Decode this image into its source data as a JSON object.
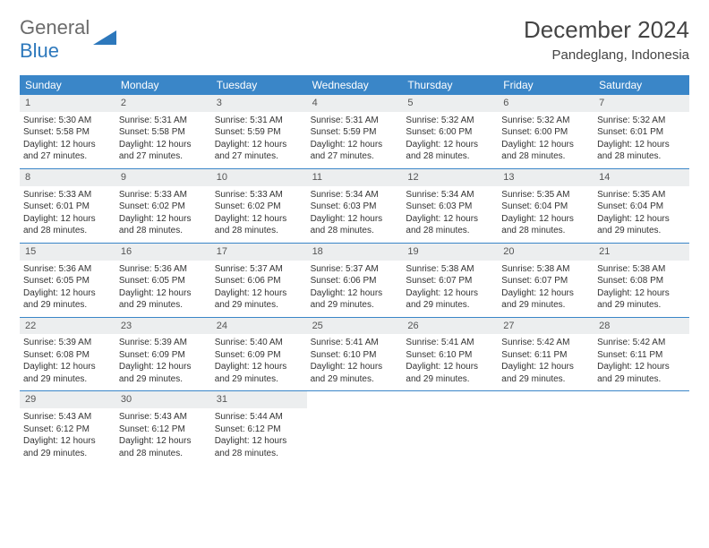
{
  "logo": {
    "part1": "General",
    "part2": "Blue"
  },
  "title": "December 2024",
  "location": "Pandeglang, Indonesia",
  "colors": {
    "header_bg": "#3a86c8",
    "header_text": "#ffffff",
    "daynum_bg": "#eceeef",
    "border": "#3a86c8",
    "logo_gray": "#6b6b6b",
    "logo_blue": "#2d78bc"
  },
  "day_names": [
    "Sunday",
    "Monday",
    "Tuesday",
    "Wednesday",
    "Thursday",
    "Friday",
    "Saturday"
  ],
  "weeks": [
    [
      {
        "n": "1",
        "sunrise": "Sunrise: 5:30 AM",
        "sunset": "Sunset: 5:58 PM",
        "daylight": "Daylight: 12 hours and 27 minutes."
      },
      {
        "n": "2",
        "sunrise": "Sunrise: 5:31 AM",
        "sunset": "Sunset: 5:58 PM",
        "daylight": "Daylight: 12 hours and 27 minutes."
      },
      {
        "n": "3",
        "sunrise": "Sunrise: 5:31 AM",
        "sunset": "Sunset: 5:59 PM",
        "daylight": "Daylight: 12 hours and 27 minutes."
      },
      {
        "n": "4",
        "sunrise": "Sunrise: 5:31 AM",
        "sunset": "Sunset: 5:59 PM",
        "daylight": "Daylight: 12 hours and 27 minutes."
      },
      {
        "n": "5",
        "sunrise": "Sunrise: 5:32 AM",
        "sunset": "Sunset: 6:00 PM",
        "daylight": "Daylight: 12 hours and 28 minutes."
      },
      {
        "n": "6",
        "sunrise": "Sunrise: 5:32 AM",
        "sunset": "Sunset: 6:00 PM",
        "daylight": "Daylight: 12 hours and 28 minutes."
      },
      {
        "n": "7",
        "sunrise": "Sunrise: 5:32 AM",
        "sunset": "Sunset: 6:01 PM",
        "daylight": "Daylight: 12 hours and 28 minutes."
      }
    ],
    [
      {
        "n": "8",
        "sunrise": "Sunrise: 5:33 AM",
        "sunset": "Sunset: 6:01 PM",
        "daylight": "Daylight: 12 hours and 28 minutes."
      },
      {
        "n": "9",
        "sunrise": "Sunrise: 5:33 AM",
        "sunset": "Sunset: 6:02 PM",
        "daylight": "Daylight: 12 hours and 28 minutes."
      },
      {
        "n": "10",
        "sunrise": "Sunrise: 5:33 AM",
        "sunset": "Sunset: 6:02 PM",
        "daylight": "Daylight: 12 hours and 28 minutes."
      },
      {
        "n": "11",
        "sunrise": "Sunrise: 5:34 AM",
        "sunset": "Sunset: 6:03 PM",
        "daylight": "Daylight: 12 hours and 28 minutes."
      },
      {
        "n": "12",
        "sunrise": "Sunrise: 5:34 AM",
        "sunset": "Sunset: 6:03 PM",
        "daylight": "Daylight: 12 hours and 28 minutes."
      },
      {
        "n": "13",
        "sunrise": "Sunrise: 5:35 AM",
        "sunset": "Sunset: 6:04 PM",
        "daylight": "Daylight: 12 hours and 28 minutes."
      },
      {
        "n": "14",
        "sunrise": "Sunrise: 5:35 AM",
        "sunset": "Sunset: 6:04 PM",
        "daylight": "Daylight: 12 hours and 29 minutes."
      }
    ],
    [
      {
        "n": "15",
        "sunrise": "Sunrise: 5:36 AM",
        "sunset": "Sunset: 6:05 PM",
        "daylight": "Daylight: 12 hours and 29 minutes."
      },
      {
        "n": "16",
        "sunrise": "Sunrise: 5:36 AM",
        "sunset": "Sunset: 6:05 PM",
        "daylight": "Daylight: 12 hours and 29 minutes."
      },
      {
        "n": "17",
        "sunrise": "Sunrise: 5:37 AM",
        "sunset": "Sunset: 6:06 PM",
        "daylight": "Daylight: 12 hours and 29 minutes."
      },
      {
        "n": "18",
        "sunrise": "Sunrise: 5:37 AM",
        "sunset": "Sunset: 6:06 PM",
        "daylight": "Daylight: 12 hours and 29 minutes."
      },
      {
        "n": "19",
        "sunrise": "Sunrise: 5:38 AM",
        "sunset": "Sunset: 6:07 PM",
        "daylight": "Daylight: 12 hours and 29 minutes."
      },
      {
        "n": "20",
        "sunrise": "Sunrise: 5:38 AM",
        "sunset": "Sunset: 6:07 PM",
        "daylight": "Daylight: 12 hours and 29 minutes."
      },
      {
        "n": "21",
        "sunrise": "Sunrise: 5:38 AM",
        "sunset": "Sunset: 6:08 PM",
        "daylight": "Daylight: 12 hours and 29 minutes."
      }
    ],
    [
      {
        "n": "22",
        "sunrise": "Sunrise: 5:39 AM",
        "sunset": "Sunset: 6:08 PM",
        "daylight": "Daylight: 12 hours and 29 minutes."
      },
      {
        "n": "23",
        "sunrise": "Sunrise: 5:39 AM",
        "sunset": "Sunset: 6:09 PM",
        "daylight": "Daylight: 12 hours and 29 minutes."
      },
      {
        "n": "24",
        "sunrise": "Sunrise: 5:40 AM",
        "sunset": "Sunset: 6:09 PM",
        "daylight": "Daylight: 12 hours and 29 minutes."
      },
      {
        "n": "25",
        "sunrise": "Sunrise: 5:41 AM",
        "sunset": "Sunset: 6:10 PM",
        "daylight": "Daylight: 12 hours and 29 minutes."
      },
      {
        "n": "26",
        "sunrise": "Sunrise: 5:41 AM",
        "sunset": "Sunset: 6:10 PM",
        "daylight": "Daylight: 12 hours and 29 minutes."
      },
      {
        "n": "27",
        "sunrise": "Sunrise: 5:42 AM",
        "sunset": "Sunset: 6:11 PM",
        "daylight": "Daylight: 12 hours and 29 minutes."
      },
      {
        "n": "28",
        "sunrise": "Sunrise: 5:42 AM",
        "sunset": "Sunset: 6:11 PM",
        "daylight": "Daylight: 12 hours and 29 minutes."
      }
    ],
    [
      {
        "n": "29",
        "sunrise": "Sunrise: 5:43 AM",
        "sunset": "Sunset: 6:12 PM",
        "daylight": "Daylight: 12 hours and 29 minutes."
      },
      {
        "n": "30",
        "sunrise": "Sunrise: 5:43 AM",
        "sunset": "Sunset: 6:12 PM",
        "daylight": "Daylight: 12 hours and 28 minutes."
      },
      {
        "n": "31",
        "sunrise": "Sunrise: 5:44 AM",
        "sunset": "Sunset: 6:12 PM",
        "daylight": "Daylight: 12 hours and 28 minutes."
      },
      null,
      null,
      null,
      null
    ]
  ]
}
